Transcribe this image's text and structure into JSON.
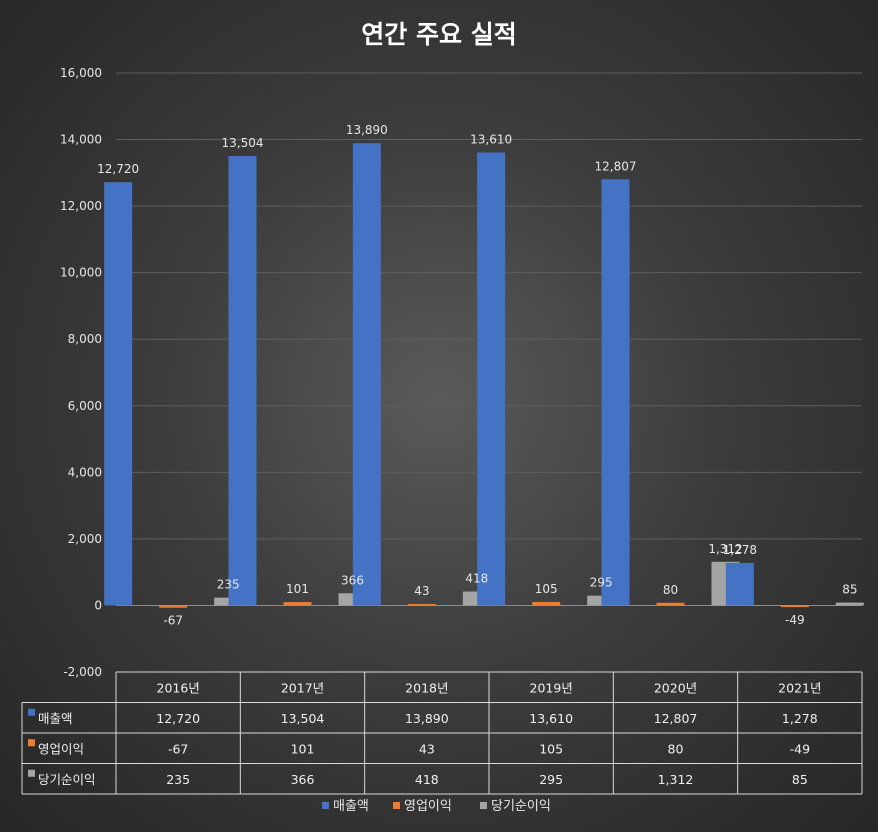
{
  "chart_data": {
    "type": "bar",
    "title": "연간 주요 실적",
    "categories": [
      "2016년",
      "2017년",
      "2018년",
      "2019년",
      "2020년",
      "2021년"
    ],
    "series": [
      {
        "name": "매출액",
        "color": "#4472c4",
        "values": [
          12720,
          13504,
          13890,
          13610,
          12807,
          1278
        ]
      },
      {
        "name": "영업이익",
        "color": "#ed7d31",
        "values": [
          -67,
          101,
          43,
          105,
          80,
          -49
        ]
      },
      {
        "name": "당기순이익",
        "color": "#a5a5a5",
        "values": [
          235,
          366,
          418,
          295,
          1312,
          85
        ]
      }
    ],
    "ylim": [
      -2000,
      16000
    ],
    "yticks": [
      -2000,
      0,
      2000,
      4000,
      6000,
      8000,
      10000,
      12000,
      14000,
      16000
    ],
    "grid": true,
    "data_table": true,
    "legend": "bottom"
  }
}
